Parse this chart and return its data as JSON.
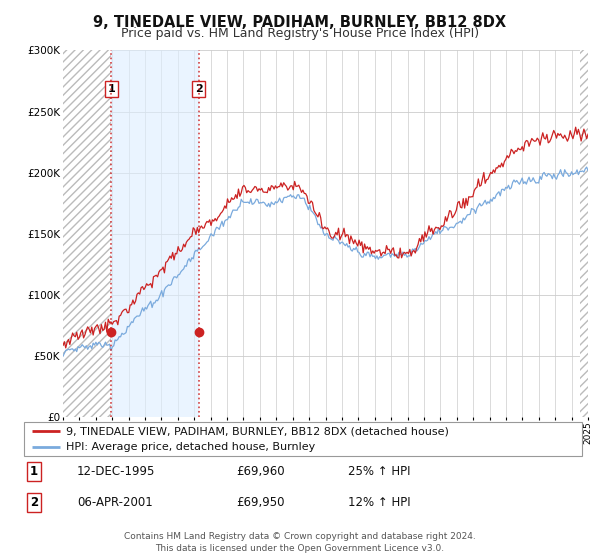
{
  "title": "9, TINEDALE VIEW, PADIHAM, BURNLEY, BB12 8DX",
  "subtitle": "Price paid vs. HM Land Registry's House Price Index (HPI)",
  "ylim": [
    0,
    300000
  ],
  "yticks": [
    0,
    50000,
    100000,
    150000,
    200000,
    250000,
    300000
  ],
  "ytick_labels": [
    "£0",
    "£50K",
    "£100K",
    "£150K",
    "£200K",
    "£250K",
    "£300K"
  ],
  "x_start_year": 1993,
  "x_end_year": 2025,
  "sale1_date": 1995.95,
  "sale1_price": 69960,
  "sale2_date": 2001.27,
  "sale2_price": 69950,
  "sale1_label": "1",
  "sale2_label": "2",
  "sale1_info": "12-DEC-1995",
  "sale1_price_str": "£69,960",
  "sale1_hpi": "25% ↑ HPI",
  "sale2_info": "06-APR-2001",
  "sale2_price_str": "£69,950",
  "sale2_hpi": "12% ↑ HPI",
  "legend_line1": "9, TINEDALE VIEW, PADIHAM, BURNLEY, BB12 8DX (detached house)",
  "legend_line2": "HPI: Average price, detached house, Burnley",
  "footer": "Contains HM Land Registry data © Crown copyright and database right 2024.\nThis data is licensed under the Open Government Licence v3.0.",
  "hpi_color": "#7aaadd",
  "price_color": "#cc2222",
  "bg_shade_color": "#ddeeff",
  "grid_color": "#cccccc",
  "title_fontsize": 10.5,
  "subtitle_fontsize": 9,
  "tick_fontsize": 7.5,
  "legend_fontsize": 8,
  "footer_fontsize": 6.5
}
